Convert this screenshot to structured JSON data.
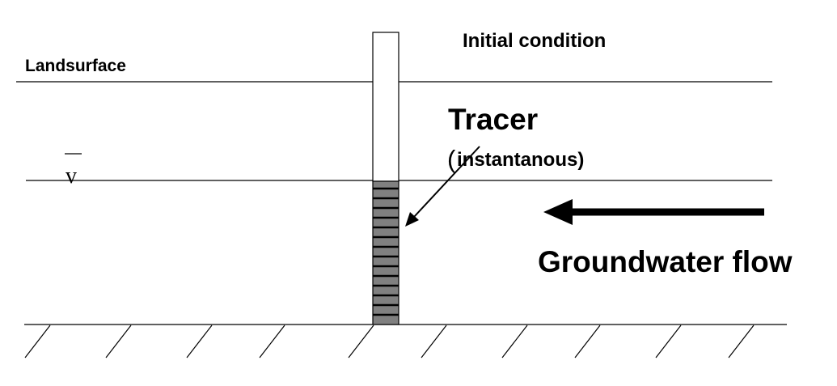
{
  "labels": {
    "initial_condition": "Initial condition",
    "landsurface": "Landsurface",
    "tracer": "Tracer",
    "tracer_sub_open": "(",
    "tracer_sub": "instantanous)",
    "groundwater_flow": "Groundwater flow",
    "water_table_symbol": "v"
  },
  "colors": {
    "line": "#000000",
    "tracer_fill": "#808080",
    "well": "#ffffff"
  }
}
